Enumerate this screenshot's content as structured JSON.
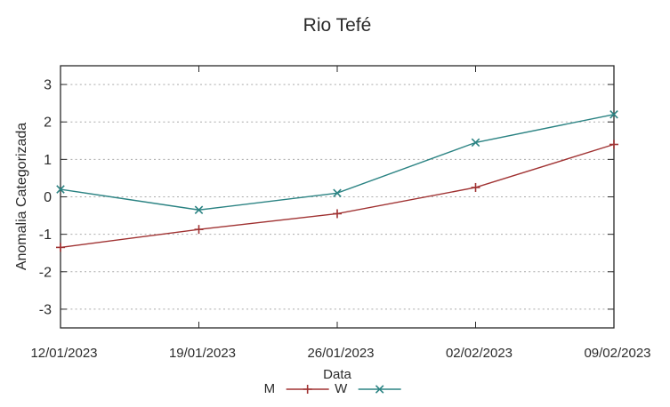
{
  "figure": {
    "background": "#ffffff",
    "axis_color": "#2a2a2a",
    "grid_color": "#aaaaaa",
    "text_color": "#2b2b2b"
  },
  "chart_data": {
    "type": "line",
    "title": "Rio Tefé",
    "xlabel": "Data",
    "ylabel": "Anomalia Categorizada",
    "categories": [
      "12/01/2023",
      "19/01/2023",
      "26/01/2023",
      "02/02/2023",
      "09/02/2023"
    ],
    "yticks": [
      -3,
      -2,
      -1,
      0,
      1,
      2,
      3
    ],
    "ylim": [
      -3.5,
      3.5
    ],
    "grid": "horizontal-dashed",
    "legend_position": "bottom-center",
    "series": [
      {
        "name": "M",
        "color": "#a03232",
        "marker": "plus",
        "values": [
          -1.35,
          -0.87,
          -0.45,
          0.25,
          1.4
        ]
      },
      {
        "name": "W",
        "color": "#2b8383",
        "marker": "cross",
        "values": [
          0.2,
          -0.35,
          0.1,
          1.45,
          2.2
        ]
      }
    ]
  }
}
